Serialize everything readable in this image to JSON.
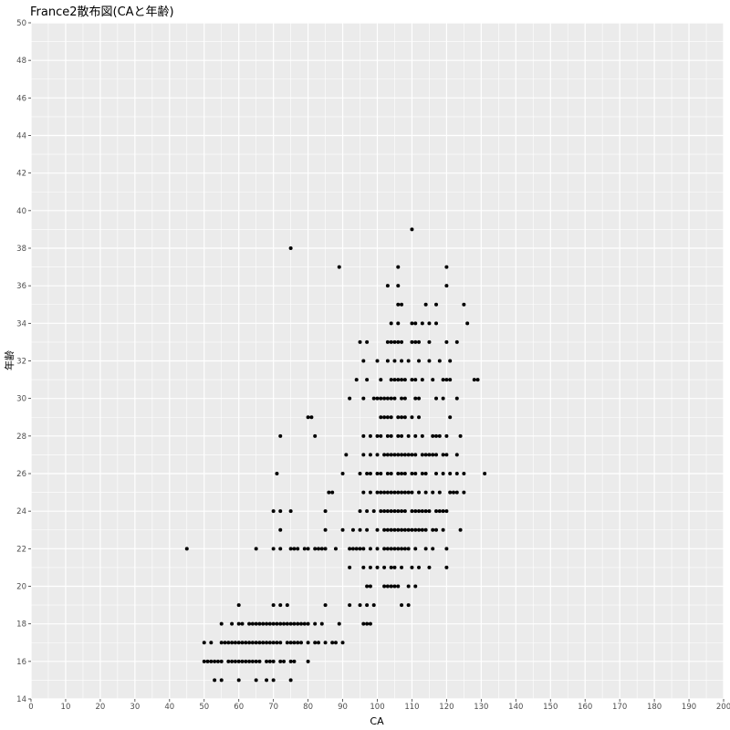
{
  "chart_data": {
    "type": "scatter",
    "title": "France2散布図(CAと年齢)",
    "xlabel": "CA",
    "ylabel": "年齢",
    "xlim": [
      0,
      200
    ],
    "ylim": [
      14,
      50
    ],
    "x_ticks": [
      0,
      10,
      20,
      30,
      40,
      50,
      60,
      70,
      80,
      90,
      100,
      110,
      120,
      130,
      140,
      150,
      160,
      170,
      180,
      190,
      200
    ],
    "y_ticks": [
      14,
      16,
      18,
      20,
      22,
      24,
      26,
      28,
      30,
      32,
      34,
      36,
      38,
      40,
      42,
      44,
      46,
      48,
      50
    ],
    "grid": true,
    "point_color": "#000000",
    "panel_background": "#ebebeb",
    "grid_color": "#ffffff",
    "points": [
      [
        45,
        22
      ],
      [
        75,
        38
      ],
      [
        89,
        37
      ],
      [
        110,
        39
      ],
      [
        53,
        15
      ],
      [
        55,
        15
      ],
      [
        60,
        15
      ],
      [
        65,
        15
      ],
      [
        68,
        15
      ],
      [
        70,
        15
      ],
      [
        75,
        15
      ],
      [
        50,
        16
      ],
      [
        51,
        16
      ],
      [
        52,
        16
      ],
      [
        53,
        16
      ],
      [
        54,
        16
      ],
      [
        55,
        16
      ],
      [
        57,
        16
      ],
      [
        58,
        16
      ],
      [
        59,
        16
      ],
      [
        60,
        16
      ],
      [
        61,
        16
      ],
      [
        62,
        16
      ],
      [
        63,
        16
      ],
      [
        64,
        16
      ],
      [
        65,
        16
      ],
      [
        66,
        16
      ],
      [
        68,
        16
      ],
      [
        69,
        16
      ],
      [
        70,
        16
      ],
      [
        72,
        16
      ],
      [
        73,
        16
      ],
      [
        75,
        16
      ],
      [
        76,
        16
      ],
      [
        80,
        16
      ],
      [
        50,
        17
      ],
      [
        52,
        17
      ],
      [
        55,
        17
      ],
      [
        56,
        17
      ],
      [
        57,
        17
      ],
      [
        58,
        17
      ],
      [
        59,
        17
      ],
      [
        60,
        17
      ],
      [
        61,
        17
      ],
      [
        62,
        17
      ],
      [
        63,
        17
      ],
      [
        64,
        17
      ],
      [
        65,
        17
      ],
      [
        66,
        17
      ],
      [
        67,
        17
      ],
      [
        68,
        17
      ],
      [
        69,
        17
      ],
      [
        70,
        17
      ],
      [
        71,
        17
      ],
      [
        72,
        17
      ],
      [
        74,
        17
      ],
      [
        75,
        17
      ],
      [
        76,
        17
      ],
      [
        77,
        17
      ],
      [
        78,
        17
      ],
      [
        80,
        17
      ],
      [
        82,
        17
      ],
      [
        83,
        17
      ],
      [
        85,
        17
      ],
      [
        87,
        17
      ],
      [
        88,
        17
      ],
      [
        90,
        17
      ],
      [
        55,
        18
      ],
      [
        58,
        18
      ],
      [
        60,
        18
      ],
      [
        61,
        18
      ],
      [
        63,
        18
      ],
      [
        64,
        18
      ],
      [
        65,
        18
      ],
      [
        66,
        18
      ],
      [
        67,
        18
      ],
      [
        68,
        18
      ],
      [
        69,
        18
      ],
      [
        70,
        18
      ],
      [
        71,
        18
      ],
      [
        72,
        18
      ],
      [
        73,
        18
      ],
      [
        74,
        18
      ],
      [
        75,
        18
      ],
      [
        76,
        18
      ],
      [
        77,
        18
      ],
      [
        78,
        18
      ],
      [
        79,
        18
      ],
      [
        80,
        18
      ],
      [
        82,
        18
      ],
      [
        84,
        18
      ],
      [
        89,
        18
      ],
      [
        96,
        18
      ],
      [
        97,
        18
      ],
      [
        98,
        18
      ],
      [
        60,
        19
      ],
      [
        70,
        19
      ],
      [
        72,
        19
      ],
      [
        74,
        19
      ],
      [
        85,
        19
      ],
      [
        92,
        19
      ],
      [
        95,
        19
      ],
      [
        97,
        19
      ],
      [
        99,
        19
      ],
      [
        107,
        19
      ],
      [
        109,
        19
      ],
      [
        97,
        20
      ],
      [
        98,
        20
      ],
      [
        102,
        20
      ],
      [
        103,
        20
      ],
      [
        104,
        20
      ],
      [
        105,
        20
      ],
      [
        106,
        20
      ],
      [
        109,
        20
      ],
      [
        111,
        20
      ],
      [
        92,
        21
      ],
      [
        96,
        21
      ],
      [
        98,
        21
      ],
      [
        100,
        21
      ],
      [
        102,
        21
      ],
      [
        104,
        21
      ],
      [
        105,
        21
      ],
      [
        107,
        21
      ],
      [
        110,
        21
      ],
      [
        112,
        21
      ],
      [
        115,
        21
      ],
      [
        120,
        21
      ],
      [
        65,
        22
      ],
      [
        70,
        22
      ],
      [
        72,
        22
      ],
      [
        75,
        22
      ],
      [
        76,
        22
      ],
      [
        77,
        22
      ],
      [
        79,
        22
      ],
      [
        80,
        22
      ],
      [
        82,
        22
      ],
      [
        83,
        22
      ],
      [
        84,
        22
      ],
      [
        85,
        22
      ],
      [
        88,
        22
      ],
      [
        92,
        22
      ],
      [
        93,
        22
      ],
      [
        94,
        22
      ],
      [
        95,
        22
      ],
      [
        96,
        22
      ],
      [
        98,
        22
      ],
      [
        100,
        22
      ],
      [
        102,
        22
      ],
      [
        103,
        22
      ],
      [
        104,
        22
      ],
      [
        105,
        22
      ],
      [
        106,
        22
      ],
      [
        107,
        22
      ],
      [
        108,
        22
      ],
      [
        109,
        22
      ],
      [
        111,
        22
      ],
      [
        114,
        22
      ],
      [
        116,
        22
      ],
      [
        120,
        22
      ],
      [
        72,
        23
      ],
      [
        85,
        23
      ],
      [
        90,
        23
      ],
      [
        93,
        23
      ],
      [
        95,
        23
      ],
      [
        97,
        23
      ],
      [
        100,
        23
      ],
      [
        102,
        23
      ],
      [
        103,
        23
      ],
      [
        104,
        23
      ],
      [
        105,
        23
      ],
      [
        106,
        23
      ],
      [
        107,
        23
      ],
      [
        108,
        23
      ],
      [
        109,
        23
      ],
      [
        110,
        23
      ],
      [
        111,
        23
      ],
      [
        112,
        23
      ],
      [
        113,
        23
      ],
      [
        114,
        23
      ],
      [
        116,
        23
      ],
      [
        117,
        23
      ],
      [
        119,
        23
      ],
      [
        124,
        23
      ],
      [
        70,
        24
      ],
      [
        72,
        24
      ],
      [
        75,
        24
      ],
      [
        85,
        24
      ],
      [
        95,
        24
      ],
      [
        97,
        24
      ],
      [
        99,
        24
      ],
      [
        101,
        24
      ],
      [
        102,
        24
      ],
      [
        103,
        24
      ],
      [
        104,
        24
      ],
      [
        105,
        24
      ],
      [
        106,
        24
      ],
      [
        107,
        24
      ],
      [
        108,
        24
      ],
      [
        110,
        24
      ],
      [
        111,
        24
      ],
      [
        112,
        24
      ],
      [
        113,
        24
      ],
      [
        114,
        24
      ],
      [
        115,
        24
      ],
      [
        117,
        24
      ],
      [
        118,
        24
      ],
      [
        119,
        24
      ],
      [
        120,
        24
      ],
      [
        86,
        25
      ],
      [
        87,
        25
      ],
      [
        96,
        25
      ],
      [
        98,
        25
      ],
      [
        100,
        25
      ],
      [
        101,
        25
      ],
      [
        102,
        25
      ],
      [
        103,
        25
      ],
      [
        104,
        25
      ],
      [
        105,
        25
      ],
      [
        106,
        25
      ],
      [
        107,
        25
      ],
      [
        108,
        25
      ],
      [
        109,
        25
      ],
      [
        110,
        25
      ],
      [
        112,
        25
      ],
      [
        114,
        25
      ],
      [
        116,
        25
      ],
      [
        118,
        25
      ],
      [
        121,
        25
      ],
      [
        122,
        25
      ],
      [
        123,
        25
      ],
      [
        125,
        25
      ],
      [
        71,
        26
      ],
      [
        90,
        26
      ],
      [
        95,
        26
      ],
      [
        97,
        26
      ],
      [
        98,
        26
      ],
      [
        100,
        26
      ],
      [
        101,
        26
      ],
      [
        103,
        26
      ],
      [
        104,
        26
      ],
      [
        106,
        26
      ],
      [
        107,
        26
      ],
      [
        108,
        26
      ],
      [
        110,
        26
      ],
      [
        111,
        26
      ],
      [
        113,
        26
      ],
      [
        114,
        26
      ],
      [
        117,
        26
      ],
      [
        119,
        26
      ],
      [
        121,
        26
      ],
      [
        123,
        26
      ],
      [
        125,
        26
      ],
      [
        131,
        26
      ],
      [
        91,
        27
      ],
      [
        96,
        27
      ],
      [
        98,
        27
      ],
      [
        100,
        27
      ],
      [
        102,
        27
      ],
      [
        103,
        27
      ],
      [
        104,
        27
      ],
      [
        105,
        27
      ],
      [
        106,
        27
      ],
      [
        107,
        27
      ],
      [
        108,
        27
      ],
      [
        109,
        27
      ],
      [
        110,
        27
      ],
      [
        111,
        27
      ],
      [
        113,
        27
      ],
      [
        114,
        27
      ],
      [
        115,
        27
      ],
      [
        116,
        27
      ],
      [
        117,
        27
      ],
      [
        119,
        27
      ],
      [
        120,
        27
      ],
      [
        123,
        27
      ],
      [
        72,
        28
      ],
      [
        82,
        28
      ],
      [
        96,
        28
      ],
      [
        98,
        28
      ],
      [
        100,
        28
      ],
      [
        101,
        28
      ],
      [
        103,
        28
      ],
      [
        104,
        28
      ],
      [
        106,
        28
      ],
      [
        107,
        28
      ],
      [
        109,
        28
      ],
      [
        111,
        28
      ],
      [
        113,
        28
      ],
      [
        116,
        28
      ],
      [
        117,
        28
      ],
      [
        118,
        28
      ],
      [
        120,
        28
      ],
      [
        124,
        28
      ],
      [
        80,
        29
      ],
      [
        81,
        29
      ],
      [
        101,
        29
      ],
      [
        102,
        29
      ],
      [
        103,
        29
      ],
      [
        104,
        29
      ],
      [
        106,
        29
      ],
      [
        107,
        29
      ],
      [
        108,
        29
      ],
      [
        110,
        29
      ],
      [
        112,
        29
      ],
      [
        121,
        29
      ],
      [
        92,
        30
      ],
      [
        96,
        30
      ],
      [
        99,
        30
      ],
      [
        100,
        30
      ],
      [
        101,
        30
      ],
      [
        102,
        30
      ],
      [
        103,
        30
      ],
      [
        104,
        30
      ],
      [
        105,
        30
      ],
      [
        107,
        30
      ],
      [
        108,
        30
      ],
      [
        111,
        30
      ],
      [
        112,
        30
      ],
      [
        117,
        30
      ],
      [
        119,
        30
      ],
      [
        123,
        30
      ],
      [
        94,
        31
      ],
      [
        97,
        31
      ],
      [
        101,
        31
      ],
      [
        104,
        31
      ],
      [
        105,
        31
      ],
      [
        106,
        31
      ],
      [
        107,
        31
      ],
      [
        108,
        31
      ],
      [
        110,
        31
      ],
      [
        111,
        31
      ],
      [
        113,
        31
      ],
      [
        116,
        31
      ],
      [
        119,
        31
      ],
      [
        120,
        31
      ],
      [
        121,
        31
      ],
      [
        128,
        31
      ],
      [
        129,
        31
      ],
      [
        96,
        32
      ],
      [
        100,
        32
      ],
      [
        103,
        32
      ],
      [
        105,
        32
      ],
      [
        107,
        32
      ],
      [
        109,
        32
      ],
      [
        112,
        32
      ],
      [
        115,
        32
      ],
      [
        118,
        32
      ],
      [
        121,
        32
      ],
      [
        95,
        33
      ],
      [
        97,
        33
      ],
      [
        103,
        33
      ],
      [
        104,
        33
      ],
      [
        105,
        33
      ],
      [
        106,
        33
      ],
      [
        107,
        33
      ],
      [
        110,
        33
      ],
      [
        111,
        33
      ],
      [
        112,
        33
      ],
      [
        115,
        33
      ],
      [
        120,
        33
      ],
      [
        123,
        33
      ],
      [
        104,
        34
      ],
      [
        106,
        34
      ],
      [
        110,
        34
      ],
      [
        111,
        34
      ],
      [
        113,
        34
      ],
      [
        115,
        34
      ],
      [
        117,
        34
      ],
      [
        126,
        34
      ],
      [
        106,
        35
      ],
      [
        107,
        35
      ],
      [
        114,
        35
      ],
      [
        117,
        35
      ],
      [
        125,
        35
      ],
      [
        103,
        36
      ],
      [
        106,
        36
      ],
      [
        120,
        36
      ],
      [
        106,
        37
      ],
      [
        120,
        37
      ]
    ]
  }
}
